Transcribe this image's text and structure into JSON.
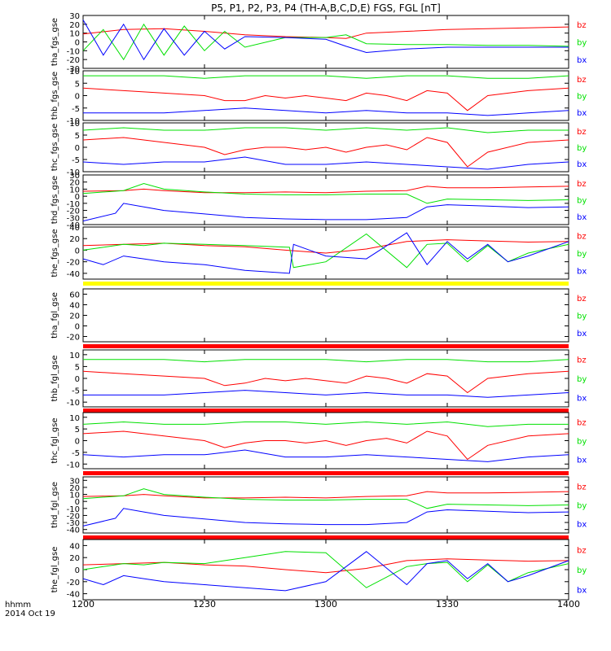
{
  "title": "P5, P1, P2, P3, P4 (TH-A,B,C,D,E) FGS, FGL [nT]",
  "time_axis": {
    "label_line1": "hhmm",
    "label_line2": "2014 Oct 19",
    "ticks": [
      "1200",
      "1230",
      "1300",
      "1330",
      "1400"
    ],
    "range_minutes": [
      0,
      120
    ],
    "tick_minutes": [
      0,
      30,
      60,
      90,
      120
    ]
  },
  "colors": {
    "bx": "#0000ff",
    "by": "#00e000",
    "bz": "#ff0000",
    "bar_yellow": "#ffff00",
    "bar_red": "#ff0000",
    "frame": "#000000"
  },
  "legend": [
    "bz",
    "by",
    "bx"
  ],
  "chart_data": [
    {
      "type": "line",
      "panel": "tha_fgs_gse",
      "ylabel": "tha_fgs_gse",
      "ylim": [
        -30,
        30
      ],
      "yticks": [
        "30",
        "20",
        "10",
        "0",
        "-10",
        "-20",
        "-30"
      ],
      "series": [
        {
          "name": "bz",
          "x": [
            0,
            10,
            20,
            30,
            40,
            50,
            60,
            65,
            70,
            80,
            90,
            100,
            110,
            120
          ],
          "y": [
            9,
            14,
            15,
            12,
            8,
            6,
            5,
            4,
            10,
            12,
            14,
            15,
            16,
            17
          ]
        },
        {
          "name": "by",
          "x": [
            0,
            5,
            10,
            15,
            20,
            25,
            30,
            35,
            40,
            50,
            60,
            65,
            70,
            80,
            90,
            100,
            110,
            120
          ],
          "y": [
            -10,
            14,
            -20,
            20,
            -15,
            18,
            -10,
            12,
            -6,
            5,
            5,
            8,
            -2,
            -3,
            -3,
            -4,
            -4,
            -5
          ]
        },
        {
          "name": "bx",
          "x": [
            0,
            5,
            10,
            15,
            20,
            25,
            30,
            35,
            40,
            50,
            60,
            65,
            70,
            80,
            90,
            100,
            110,
            120
          ],
          "y": [
            25,
            -15,
            20,
            -20,
            15,
            -15,
            12,
            -8,
            6,
            5,
            3,
            -5,
            -12,
            -8,
            -6,
            -6,
            -6,
            -6
          ]
        }
      ]
    },
    {
      "type": "line",
      "panel": "thb_fgs_gse",
      "ylabel": "thb_fgs_gse",
      "ylim": [
        -10,
        10
      ],
      "yticks": [
        "10",
        "5",
        "0",
        "-5",
        "-10"
      ],
      "series": [
        {
          "name": "bz",
          "x": [
            0,
            10,
            20,
            30,
            35,
            40,
            45,
            50,
            55,
            60,
            65,
            70,
            75,
            80,
            85,
            90,
            95,
            100,
            110,
            120
          ],
          "y": [
            3,
            2,
            1,
            0,
            -2,
            -2,
            0,
            -1,
            0,
            -1,
            -2,
            1,
            0,
            -2,
            2,
            1,
            -6,
            0,
            2,
            3
          ]
        },
        {
          "name": "by",
          "x": [
            0,
            10,
            20,
            30,
            40,
            50,
            60,
            70,
            80,
            90,
            100,
            110,
            120
          ],
          "y": [
            8,
            8,
            8,
            7,
            8,
            8,
            8,
            7,
            8,
            8,
            7,
            7,
            8
          ]
        },
        {
          "name": "bx",
          "x": [
            0,
            10,
            20,
            30,
            40,
            50,
            60,
            70,
            80,
            90,
            100,
            110,
            120
          ],
          "y": [
            -7,
            -7,
            -7,
            -6,
            -5,
            -6,
            -7,
            -6,
            -7,
            -7,
            -8,
            -7,
            -6
          ]
        }
      ]
    },
    {
      "type": "line",
      "panel": "thc_fgs_gse",
      "ylabel": "thc_fgs_gse",
      "ylim": [
        -10,
        10
      ],
      "yticks": [
        "10",
        "5",
        "0",
        "-5",
        "-10"
      ],
      "series": [
        {
          "name": "bz",
          "x": [
            0,
            10,
            20,
            30,
            35,
            40,
            45,
            50,
            55,
            60,
            65,
            70,
            75,
            80,
            85,
            90,
            95,
            100,
            110,
            120
          ],
          "y": [
            3,
            4,
            2,
            0,
            -3,
            -1,
            0,
            0,
            -1,
            0,
            -2,
            0,
            1,
            -1,
            4,
            2,
            -8,
            -2,
            2,
            3
          ]
        },
        {
          "name": "by",
          "x": [
            0,
            10,
            20,
            30,
            40,
            50,
            60,
            70,
            80,
            90,
            100,
            110,
            120
          ],
          "y": [
            7,
            8,
            7,
            7,
            8,
            8,
            7,
            8,
            7,
            8,
            6,
            7,
            7
          ]
        },
        {
          "name": "bx",
          "x": [
            0,
            10,
            20,
            30,
            40,
            50,
            60,
            70,
            80,
            90,
            100,
            110,
            120
          ],
          "y": [
            -6,
            -7,
            -6,
            -6,
            -4,
            -7,
            -7,
            -6,
            -7,
            -8,
            -9,
            -7,
            -6
          ]
        }
      ]
    },
    {
      "type": "line",
      "panel": "thd_fgs_gse",
      "ylabel": "thd_fgs_gse",
      "ylim": [
        -40,
        30
      ],
      "yticks": [
        "30",
        "20",
        "10",
        "0",
        "-10",
        "-20",
        "-30",
        "-40"
      ],
      "series": [
        {
          "name": "bz",
          "x": [
            0,
            10,
            15,
            20,
            30,
            40,
            50,
            60,
            70,
            80,
            85,
            90,
            100,
            110,
            120
          ],
          "y": [
            7,
            8,
            10,
            8,
            5,
            5,
            6,
            5,
            7,
            8,
            14,
            12,
            12,
            13,
            14
          ]
        },
        {
          "name": "by",
          "x": [
            0,
            10,
            15,
            20,
            30,
            40,
            50,
            60,
            70,
            80,
            85,
            90,
            100,
            110,
            120
          ],
          "y": [
            4,
            8,
            18,
            10,
            6,
            3,
            2,
            2,
            3,
            3,
            -10,
            -4,
            -5,
            -6,
            -5
          ]
        },
        {
          "name": "bx",
          "x": [
            0,
            8,
            10,
            15,
            20,
            30,
            40,
            50,
            60,
            70,
            80,
            85,
            90,
            100,
            110,
            120
          ],
          "y": [
            -35,
            -24,
            -10,
            -15,
            -20,
            -25,
            -30,
            -32,
            -33,
            -33,
            -30,
            -15,
            -12,
            -14,
            -16,
            -15
          ]
        }
      ]
    },
    {
      "type": "line",
      "panel": "the_fgs_gse",
      "ylabel": "the_fgs_gse",
      "ylim": [
        -50,
        40
      ],
      "yticks": [
        "40",
        "20",
        "0",
        "-20",
        "-40"
      ],
      "series": [
        {
          "name": "bz",
          "x": [
            0,
            10,
            20,
            30,
            40,
            50,
            60,
            70,
            80,
            90,
            100,
            110,
            120
          ],
          "y": [
            8,
            10,
            12,
            8,
            6,
            0,
            -5,
            2,
            15,
            18,
            16,
            14,
            15
          ]
        },
        {
          "name": "by",
          "x": [
            0,
            5,
            10,
            15,
            20,
            30,
            40,
            51,
            52,
            60,
            70,
            80,
            85,
            90,
            95,
            100,
            105,
            110,
            120
          ],
          "y": [
            0,
            5,
            10,
            8,
            12,
            10,
            8,
            5,
            -30,
            -20,
            28,
            -30,
            10,
            12,
            -20,
            8,
            -20,
            -5,
            10
          ]
        },
        {
          "name": "bx",
          "x": [
            0,
            5,
            10,
            15,
            20,
            30,
            40,
            51,
            52,
            60,
            70,
            80,
            85,
            90,
            95,
            100,
            105,
            110,
            120
          ],
          "y": [
            -15,
            -25,
            -10,
            -15,
            -20,
            -25,
            -35,
            -40,
            10,
            -10,
            -15,
            30,
            -25,
            15,
            -15,
            10,
            -20,
            -10,
            15
          ]
        }
      ]
    },
    {
      "type": "line",
      "panel": "tha_fgl_gse",
      "ylabel": "tha_fgl_gse",
      "ylim": [
        -30,
        70
      ],
      "yticks": [
        "60",
        "40",
        "20",
        "0",
        "-20"
      ],
      "series": [
        {
          "name": "bz",
          "x": [],
          "y": []
        },
        {
          "name": "by",
          "x": [],
          "y": []
        },
        {
          "name": "bx",
          "x": [],
          "y": []
        }
      ]
    },
    {
      "type": "line",
      "panel": "thb_fgl_gse",
      "ylabel": "thb_fgl_gse",
      "ylim": [
        -12,
        12
      ],
      "yticks": [
        "10",
        "5",
        "0",
        "-5",
        "-10"
      ],
      "series": [
        {
          "name": "bz",
          "x": [
            0,
            10,
            20,
            30,
            35,
            40,
            45,
            50,
            55,
            60,
            65,
            70,
            75,
            80,
            85,
            90,
            95,
            100,
            110,
            120
          ],
          "y": [
            3,
            2,
            1,
            0,
            -3,
            -2,
            0,
            -1,
            0,
            -1,
            -2,
            1,
            0,
            -2,
            2,
            1,
            -6,
            0,
            2,
            3
          ]
        },
        {
          "name": "by",
          "x": [
            0,
            10,
            20,
            30,
            40,
            50,
            60,
            70,
            80,
            90,
            100,
            110,
            120
          ],
          "y": [
            8,
            8,
            8,
            7,
            8,
            8,
            8,
            7,
            8,
            8,
            7,
            7,
            8
          ]
        },
        {
          "name": "bx",
          "x": [
            0,
            10,
            20,
            30,
            40,
            50,
            60,
            70,
            80,
            90,
            100,
            110,
            120
          ],
          "y": [
            -7,
            -7,
            -7,
            -6,
            -5,
            -6,
            -7,
            -6,
            -7,
            -7,
            -8,
            -7,
            -6
          ]
        }
      ]
    },
    {
      "type": "line",
      "panel": "thc_fgl_gse",
      "ylabel": "thc_fgl_gse",
      "ylim": [
        -12,
        12
      ],
      "yticks": [
        "10",
        "5",
        "0",
        "-5",
        "-10"
      ],
      "series": [
        {
          "name": "bz",
          "x": [
            0,
            10,
            20,
            30,
            35,
            40,
            45,
            50,
            55,
            60,
            65,
            70,
            75,
            80,
            85,
            90,
            95,
            100,
            110,
            120
          ],
          "y": [
            3,
            4,
            2,
            0,
            -3,
            -1,
            0,
            0,
            -1,
            0,
            -2,
            0,
            1,
            -1,
            4,
            2,
            -8,
            -2,
            2,
            3
          ]
        },
        {
          "name": "by",
          "x": [
            0,
            10,
            20,
            30,
            40,
            50,
            60,
            70,
            80,
            90,
            100,
            110,
            120
          ],
          "y": [
            7,
            8,
            7,
            7,
            8,
            8,
            7,
            8,
            7,
            8,
            6,
            7,
            7
          ]
        },
        {
          "name": "bx",
          "x": [
            0,
            10,
            20,
            30,
            40,
            50,
            60,
            70,
            80,
            90,
            100,
            110,
            120
          ],
          "y": [
            -6,
            -7,
            -6,
            -6,
            -4,
            -7,
            -7,
            -6,
            -7,
            -8,
            -9,
            -7,
            -6
          ]
        }
      ]
    },
    {
      "type": "line",
      "panel": "thd_fgl_gse",
      "ylabel": "thd_fgl_gse",
      "ylim": [
        -45,
        35
      ],
      "yticks": [
        "30",
        "20",
        "10",
        "0",
        "-10",
        "-20",
        "-30",
        "-40"
      ],
      "series": [
        {
          "name": "bz",
          "x": [
            0,
            10,
            15,
            20,
            30,
            40,
            50,
            60,
            70,
            80,
            85,
            90,
            100,
            110,
            120
          ],
          "y": [
            7,
            8,
            10,
            8,
            5,
            5,
            6,
            5,
            7,
            8,
            14,
            12,
            12,
            13,
            14
          ]
        },
        {
          "name": "by",
          "x": [
            0,
            10,
            15,
            20,
            30,
            40,
            50,
            60,
            70,
            80,
            85,
            90,
            100,
            110,
            120
          ],
          "y": [
            4,
            8,
            18,
            10,
            6,
            3,
            2,
            2,
            3,
            3,
            -10,
            -4,
            -5,
            -6,
            -5
          ]
        },
        {
          "name": "bx",
          "x": [
            0,
            8,
            10,
            15,
            20,
            30,
            40,
            50,
            60,
            70,
            80,
            85,
            90,
            100,
            110,
            120
          ],
          "y": [
            -35,
            -24,
            -10,
            -15,
            -20,
            -25,
            -30,
            -32,
            -33,
            -33,
            -30,
            -15,
            -12,
            -14,
            -16,
            -15
          ]
        }
      ]
    },
    {
      "type": "line",
      "panel": "the_fgl_gse",
      "ylabel": "the_fgl_gse",
      "ylim": [
        -50,
        50
      ],
      "yticks": [
        "40",
        "20",
        "0",
        "-20",
        "-40"
      ],
      "series": [
        {
          "name": "bz",
          "x": [
            0,
            10,
            20,
            30,
            40,
            50,
            60,
            70,
            80,
            90,
            100,
            110,
            120
          ],
          "y": [
            8,
            10,
            12,
            8,
            6,
            0,
            -5,
            2,
            15,
            18,
            16,
            14,
            15
          ]
        },
        {
          "name": "by",
          "x": [
            0,
            5,
            10,
            15,
            20,
            30,
            40,
            50,
            60,
            70,
            80,
            85,
            90,
            95,
            100,
            105,
            110,
            120
          ],
          "y": [
            0,
            5,
            10,
            8,
            12,
            10,
            20,
            30,
            28,
            -30,
            5,
            10,
            12,
            -20,
            8,
            -20,
            -5,
            10
          ]
        },
        {
          "name": "bx",
          "x": [
            0,
            5,
            10,
            15,
            20,
            30,
            40,
            50,
            60,
            70,
            80,
            85,
            90,
            95,
            100,
            105,
            110,
            120
          ],
          "y": [
            -15,
            -25,
            -10,
            -15,
            -20,
            -25,
            -30,
            -35,
            -20,
            30,
            -25,
            10,
            15,
            -15,
            10,
            -20,
            -10,
            15
          ]
        }
      ]
    }
  ]
}
